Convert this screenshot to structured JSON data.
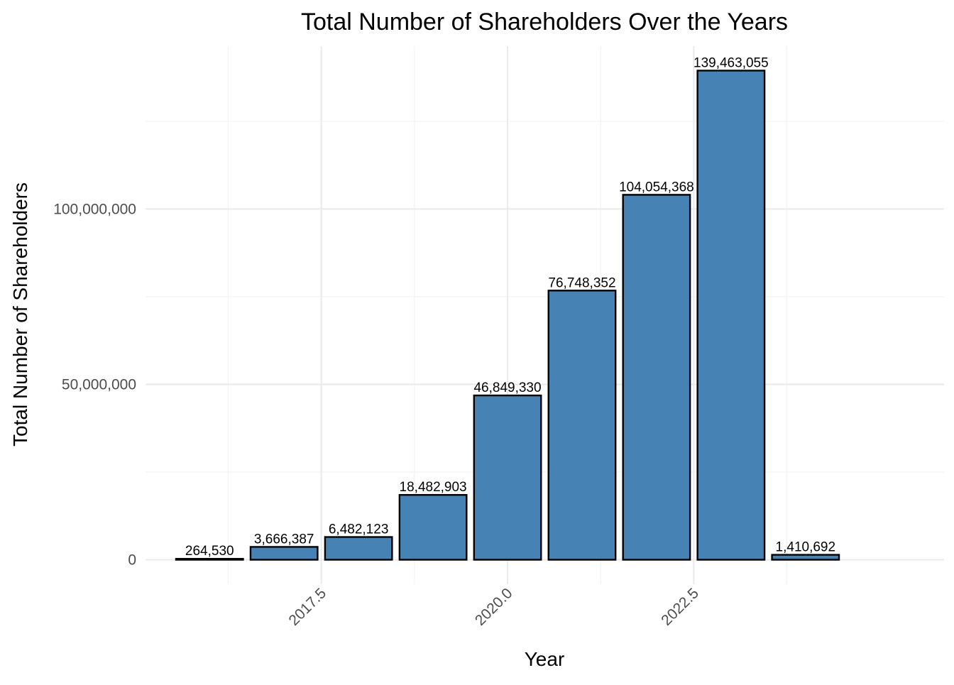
{
  "chart_data": {
    "type": "bar",
    "title": "Total Number of Shareholders Over the Years",
    "xlabel": "Year",
    "ylabel": "Total Number of Shareholders",
    "x": [
      2016,
      2017,
      2018,
      2019,
      2020,
      2021,
      2022,
      2023,
      2024
    ],
    "values": [
      264530,
      3666387,
      6482123,
      18482903,
      46849330,
      76748352,
      104054368,
      139463055,
      1410692
    ],
    "value_labels": [
      "264,530",
      "3,666,387",
      "6,482,123",
      "18,482,903",
      "46,849,330",
      "76,748,352",
      "104,054,368",
      "139,463,055",
      "1,410,692"
    ],
    "x_ticks": [
      {
        "value": 2017.5,
        "label": "2017.5"
      },
      {
        "value": 2020.0,
        "label": "2020.0"
      },
      {
        "value": 2022.5,
        "label": "2022.5"
      }
    ],
    "y_ticks": [
      {
        "value": 0,
        "label": "0"
      },
      {
        "value": 50000000,
        "label": "50,000,000"
      },
      {
        "value": 100000000,
        "label": "100,000,000"
      }
    ],
    "xlim": [
      2015.14,
      2025.86
    ],
    "ylim": [
      -6973153,
      146436208
    ],
    "bar_color": "#4682b4",
    "grid": true
  }
}
